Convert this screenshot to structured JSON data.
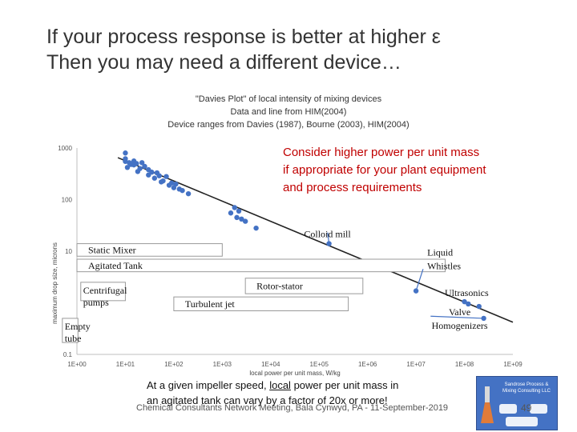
{
  "slide": {
    "title_line1": "If your process response is better at higher ε",
    "title_line2": "Then you may need a different device…",
    "callout_lines": [
      "Consider higher power per unit mass",
      "if appropriate for your plant equipment",
      "and process requirements"
    ],
    "bottom_note_line1_pre": "At a given impeller speed, ",
    "bottom_note_line1_underlined": "local",
    "bottom_note_line1_post": " power per unit mass in",
    "bottom_note_line2": "an agitated tank can vary by a factor of 20x or more!",
    "footer": "Chemical Consultants Network Meeting, Bala Cynwyd, PA - 11-September-2019",
    "page_number": "49",
    "logo_text": "Sandrose Process & Mixing Consulting LLC",
    "logo_icon": "flask-icon",
    "logo_color": "#4472c4"
  },
  "chart_data": {
    "type": "scatter",
    "title_lines": [
      "\"Davies Plot\" of local intensity of mixing devices",
      "Data and line from HIM(2004)",
      "Device ranges from Davies (1987), Bourne (2003), HIM(2004)"
    ],
    "xlabel": "local power per unit mass, W/kg",
    "ylabel": "maximum drop size, microns",
    "x_scale": "log",
    "y_scale": "log",
    "xlim": [
      1,
      1000000000
    ],
    "ylim": [
      0.1,
      1000
    ],
    "x_ticks": [
      "1E+00",
      "1E+01",
      "1E+02",
      "1E+03",
      "1E+04",
      "1E+05",
      "1E+06",
      "1E+07",
      "1E+08",
      "1E+09"
    ],
    "y_ticks": [
      "0.1",
      "10",
      "100",
      "1000"
    ],
    "marker_color": "#4472c4",
    "points": [
      [
        10,
        800
      ],
      [
        10,
        620
      ],
      [
        10,
        550
      ],
      [
        11,
        420
      ],
      [
        12,
        520
      ],
      [
        13,
        480
      ],
      [
        15,
        560
      ],
      [
        15,
        470
      ],
      [
        17,
        500
      ],
      [
        18,
        350
      ],
      [
        20,
        400
      ],
      [
        22,
        520
      ],
      [
        25,
        440
      ],
      [
        30,
        380
      ],
      [
        30,
        300
      ],
      [
        35,
        340
      ],
      [
        40,
        260
      ],
      [
        45,
        330
      ],
      [
        50,
        290
      ],
      [
        55,
        220
      ],
      [
        60,
        230
      ],
      [
        70,
        280
      ],
      [
        80,
        190
      ],
      [
        90,
        210
      ],
      [
        100,
        170
      ],
      [
        110,
        200
      ],
      [
        130,
        160
      ],
      [
        150,
        150
      ],
      [
        200,
        130
      ],
      [
        1500,
        55
      ],
      [
        1800,
        70
      ],
      [
        2000,
        45
      ],
      [
        2200,
        60
      ],
      [
        2500,
        42
      ],
      [
        3000,
        38
      ],
      [
        5000,
        28
      ],
      [
        160000,
        14
      ],
      [
        10000000,
        1.7
      ],
      [
        100000000,
        1.05
      ],
      [
        120000000,
        0.95
      ],
      [
        200000000,
        0.85
      ],
      [
        250000000,
        0.5
      ]
    ],
    "fit_line": {
      "x": [
        7,
        1000000000
      ],
      "y": [
        650,
        0.42
      ],
      "color": "#222222"
    },
    "device_ranges": [
      {
        "label": "Static Mixer",
        "x": [
          1,
          1000
        ],
        "y": [
          8,
          14
        ]
      },
      {
        "label": "Agitated Tank",
        "x": [
          1,
          40000000
        ],
        "y": [
          4,
          7
        ]
      },
      {
        "label": "Centrifugal pumps",
        "x": [
          1.2,
          10
        ],
        "y": [
          1.1,
          2.5
        ]
      },
      {
        "label": "Rotor-stator",
        "x": [
          3000,
          800000
        ],
        "y": [
          1.5,
          3
        ]
      },
      {
        "label": "Turbulent jet",
        "x": [
          100,
          400000
        ],
        "y": [
          0.7,
          1.3
        ]
      },
      {
        "label": "Empty tube",
        "x": [
          0.5,
          1.05
        ],
        "y": [
          0.17,
          0.5
        ]
      }
    ],
    "annotations": [
      {
        "label": "Colloid mill",
        "x": 160000,
        "y": 14,
        "arrow_from": [
          150000,
          23
        ]
      },
      {
        "label": "Liquid Whistles",
        "x": 10000000,
        "y": 1.7,
        "arrow_from": [
          14000000,
          4.5
        ]
      },
      {
        "label": "Ultrasonics",
        "x": 120000000,
        "y": 0.95
      },
      {
        "label": "Valve Homogenizers",
        "x": 250000000,
        "y": 0.5,
        "arrow_from": [
          20000000,
          0.55
        ]
      }
    ]
  }
}
